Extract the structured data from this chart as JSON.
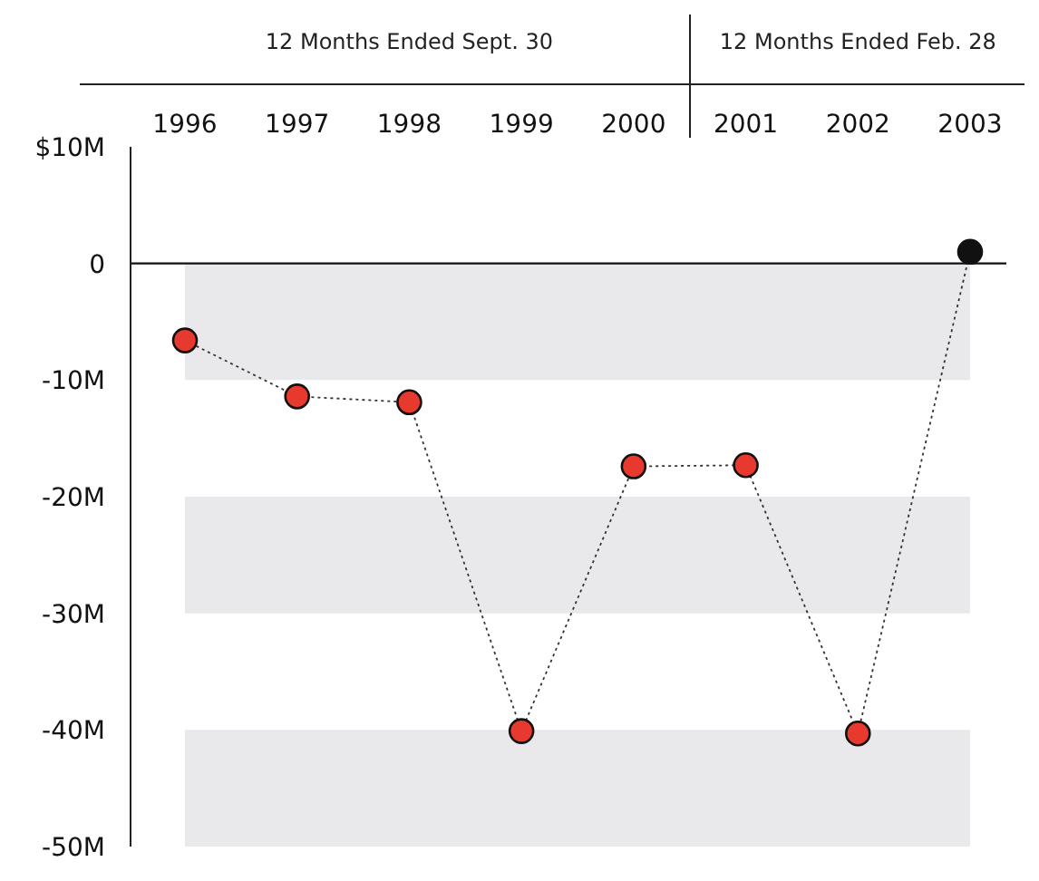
{
  "chart_data": {
    "type": "line",
    "categories": [
      "1996",
      "1997",
      "1998",
      "1999",
      "2000",
      "2001",
      "2002",
      "2003"
    ],
    "series": [
      {
        "colors": [
          "#e8392f",
          "#e8392f",
          "#e8392f",
          "#e8392f",
          "#e8392f",
          "#e8392f",
          "#e8392f",
          "#111111"
        ],
        "values": [
          -6.6,
          -11.4,
          -11.9,
          -40.1,
          -17.4,
          -17.3,
          -40.3,
          1.0
        ]
      }
    ],
    "ylim": [
      -50,
      10
    ],
    "yticks": [
      {
        "value": 10,
        "label": "$10M"
      },
      0,
      {
        "value": -10,
        "label": "-10M"
      },
      {
        "value": -20,
        "label": "-20M"
      },
      {
        "value": -30,
        "label": "-30M"
      },
      {
        "value": -40,
        "label": "-40M"
      },
      {
        "value": -50,
        "label": "-50M"
      }
    ],
    "bands": [
      {
        "axis": "y",
        "from": -10,
        "to": 0,
        "color": "#e9e9ec"
      },
      {
        "axis": "y",
        "from": -30,
        "to": -20,
        "color": "#e9e9ec"
      },
      {
        "axis": "y",
        "from": -50,
        "to": -40,
        "color": "#e9e9ec"
      }
    ],
    "ref_lines": [
      {
        "axis": "y",
        "value": 0,
        "color": "#111111"
      }
    ],
    "annotations": [
      "12 Months Ended Sept. 30",
      "12 Months Ended Feb. 28"
    ],
    "marker": "circle",
    "line_style": "dotted",
    "grid": false,
    "legend": false
  }
}
